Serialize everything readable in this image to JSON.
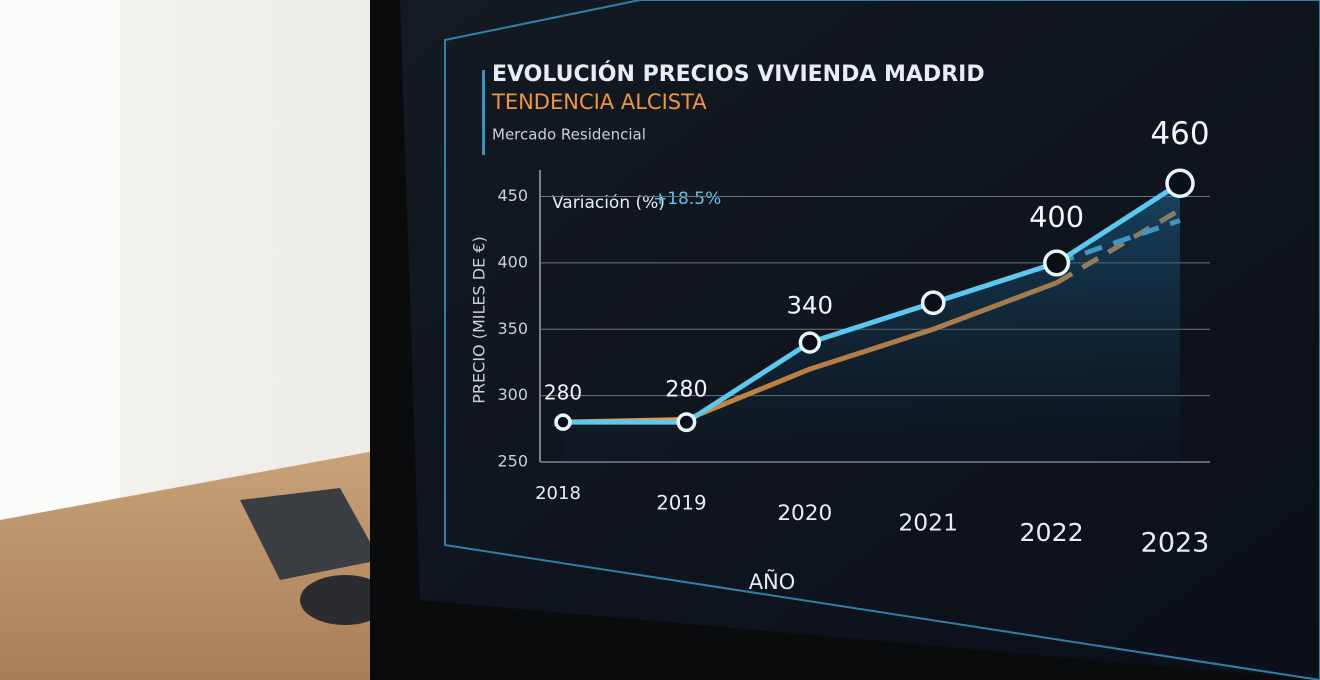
{
  "chart_data": {
    "type": "line",
    "title": "EVOLUCIÓN PRECIOS VIVIENDA MADRID",
    "subtitle": "TENDENCIA ALCISTA",
    "caption": "Mercado Residencial",
    "annotation": {
      "label": "Variación (%)",
      "value": "+18.5%"
    },
    "x_label": "AÑO",
    "y_label": "PRECIO (MILES DE €)",
    "categories": [
      "2018",
      "2019",
      "2020",
      "2021",
      "2022",
      "2023"
    ],
    "series": [
      {
        "color": "#5bc8ef",
        "values": [
          280,
          280,
          340,
          370,
          400,
          460
        ],
        "value_labels": [
          "280",
          "280",
          "340",
          null,
          "400",
          "460"
        ],
        "markers": true
      },
      {
        "color": "#5bc8ef",
        "values": [
          null,
          null,
          null,
          null,
          400,
          432
        ],
        "dash_from": 4
      },
      {
        "color": "#f0953a",
        "values": [
          280,
          282,
          320,
          350,
          385,
          440
        ],
        "dash_from": 4
      }
    ],
    "ylim": [
      250,
      470
    ],
    "yticks": [
      250,
      300,
      350,
      400,
      450
    ],
    "grid": true
  }
}
